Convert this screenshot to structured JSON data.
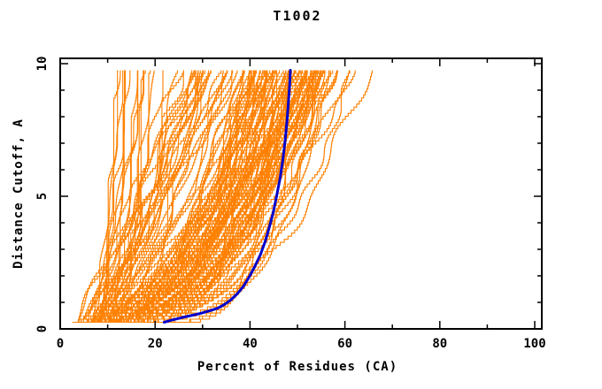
{
  "chart_data": {
    "type": "line",
    "title": "T1002",
    "xlabel": "Percent of Residues (CA)",
    "ylabel": "Distance Cutoff, A",
    "xlim": [
      0,
      100
    ],
    "ylim": [
      0,
      10
    ],
    "x_axis": {
      "major_ticks": [
        0,
        20,
        40,
        60,
        80,
        100
      ],
      "minor_tick_step": 10
    },
    "y_axis": {
      "major_ticks": [
        0,
        5,
        10
      ],
      "minor_tick_step": 1
    },
    "grid": false,
    "legend": "none",
    "frame": "closed box, ticks mirrored on all four sides pointing inward",
    "series": [
      {
        "name": "model-ensemble",
        "role": "background ensemble of cumulative model-accuracy curves (individual values not readable)",
        "color": "#ff8000",
        "line_style": "thin stepped lines",
        "count_estimate": 140,
        "y_range": [
          0.25,
          9.75
        ],
        "x_start_range_pct": [
          2.5,
          22
        ],
        "x_top_range_pct": [
          11,
          67
        ],
        "x_top_dense_band_pct": [
          38,
          57
        ]
      },
      {
        "name": "highlighted-model",
        "color": "#0000cd",
        "line_width": 3,
        "points": [
          [
            21.9,
            0.25
          ],
          [
            23.5,
            0.33
          ],
          [
            25.5,
            0.42
          ],
          [
            27.5,
            0.5
          ],
          [
            29.5,
            0.58
          ],
          [
            31.5,
            0.68
          ],
          [
            33.2,
            0.78
          ],
          [
            34.6,
            0.92
          ],
          [
            36.0,
            1.1
          ],
          [
            37.3,
            1.32
          ],
          [
            38.6,
            1.6
          ],
          [
            39.8,
            1.95
          ],
          [
            41.0,
            2.35
          ],
          [
            42.2,
            2.8
          ],
          [
            43.2,
            3.3
          ],
          [
            44.1,
            3.85
          ],
          [
            44.9,
            4.4
          ],
          [
            45.6,
            5.0
          ],
          [
            46.3,
            5.65
          ],
          [
            46.9,
            6.35
          ],
          [
            47.4,
            7.1
          ],
          [
            47.8,
            7.85
          ],
          [
            48.1,
            8.55
          ],
          [
            48.35,
            9.2
          ],
          [
            48.5,
            9.75
          ]
        ]
      }
    ]
  },
  "colors": {
    "background": "#ffffff",
    "frame": "#000000",
    "text": "#000000",
    "ensemble": "#ff8000",
    "highlight": "#0000cd"
  }
}
